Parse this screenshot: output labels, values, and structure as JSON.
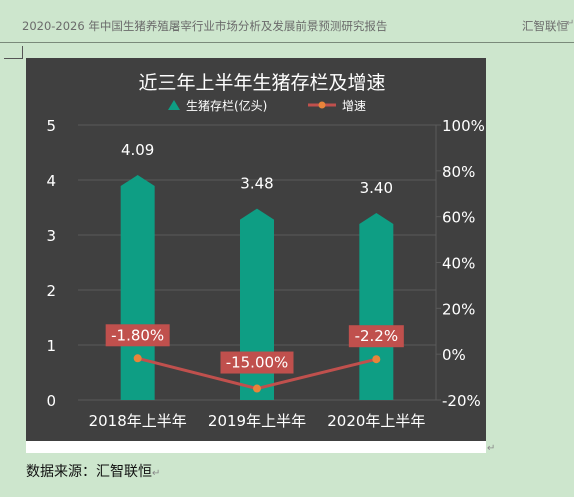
{
  "doc": {
    "header_title": "2020-2026 年中国生猪养殖屠宰行业市场分析及发展前景预测研究报告",
    "header_brand": "汇智联恒",
    "source_note": "数据来源：汇智联恒",
    "para_mark": "↵"
  },
  "colors": {
    "page_bg": "#cde6cd",
    "chart_bg": "#404040",
    "bar": "#0e9e84",
    "line": "#c0504d",
    "marker": "#e8843a",
    "label_box": "#c0504d",
    "text": "#ffffff",
    "grid": "#5a5a5a"
  },
  "chart_data": {
    "type": "bar",
    "title": "近三年上半年生猪存栏及增速",
    "categories": [
      "2018年上半年",
      "2019年上半年",
      "2020年上半年"
    ],
    "series": [
      {
        "name": "生猪存栏(亿头)",
        "type": "bar",
        "axis": "left",
        "values": [
          4.09,
          3.48,
          3.4
        ],
        "labels": [
          "4.09",
          "3.48",
          "3.40"
        ]
      },
      {
        "name": "增速",
        "type": "line",
        "axis": "right",
        "values": [
          -1.8,
          -15.0,
          -2.2
        ],
        "labels": [
          "-1.80%",
          "-15.00%",
          "-2.2%"
        ]
      }
    ],
    "y_left": {
      "min": 0,
      "max": 5,
      "ticks": [
        "0",
        "1",
        "2",
        "3",
        "4",
        "5"
      ]
    },
    "y_right": {
      "min": -20,
      "max": 100,
      "ticks": [
        "-20%",
        "0%",
        "20%",
        "40%",
        "60%",
        "80%",
        "100%"
      ]
    },
    "grid": true,
    "legend": "top-center"
  }
}
